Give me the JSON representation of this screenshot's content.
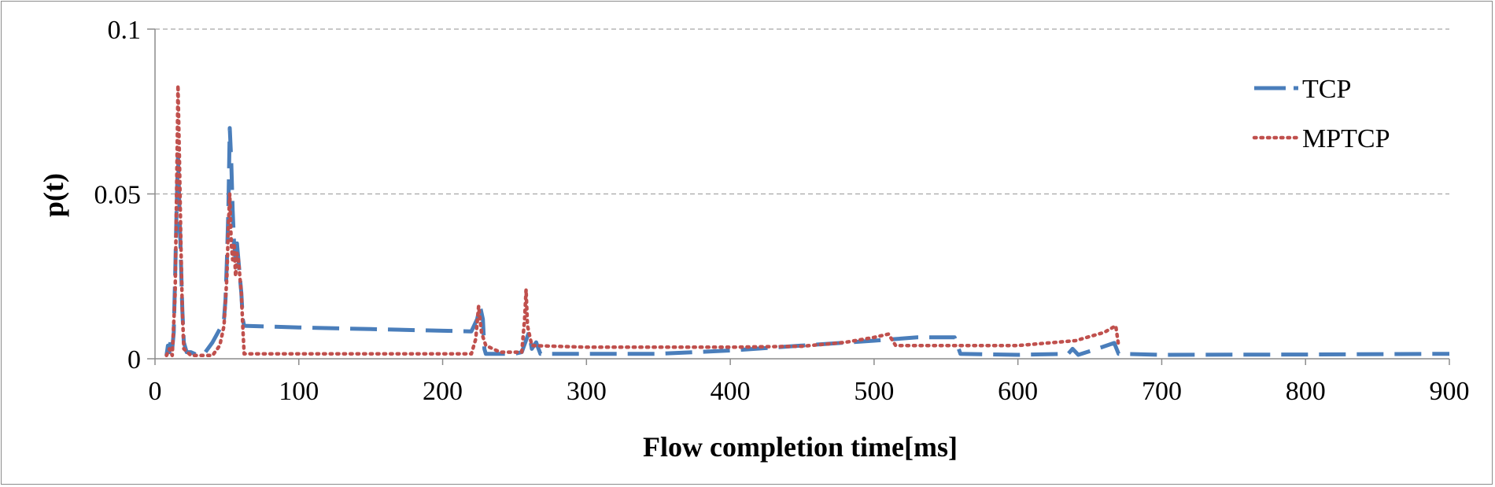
{
  "chart_data": {
    "type": "line",
    "title": "",
    "xlabel": "Flow completion time[ms]",
    "ylabel": "p(t)",
    "xlim": [
      0,
      900
    ],
    "ylim": [
      0,
      0.1
    ],
    "x_ticks": [
      "0",
      "100",
      "200",
      "300",
      "400",
      "500",
      "600",
      "700",
      "800",
      "900"
    ],
    "y_ticks": [
      "0",
      "0.05",
      "0.1"
    ],
    "grid": "horizontal dashed",
    "legend": "top-right",
    "series": [
      {
        "name": "TCP",
        "color": "#4a7ebb",
        "style": "dashed",
        "points": [
          [
            8,
            0.001
          ],
          [
            9,
            0.004
          ],
          [
            10,
            0.002
          ],
          [
            11,
            0.006
          ],
          [
            12,
            0.003
          ],
          [
            13,
            0.008
          ],
          [
            14,
            0.025
          ],
          [
            15,
            0.045
          ],
          [
            16,
            0.062
          ],
          [
            17,
            0.045
          ],
          [
            18,
            0.03
          ],
          [
            19,
            0.015
          ],
          [
            20,
            0.005
          ],
          [
            22,
            0.002
          ],
          [
            25,
            0.002
          ],
          [
            30,
            0.001
          ],
          [
            35,
            0.002
          ],
          [
            40,
            0.005
          ],
          [
            45,
            0.009
          ],
          [
            48,
            0.012
          ],
          [
            49,
            0.018
          ],
          [
            50,
            0.03
          ],
          [
            51,
            0.045
          ],
          [
            52,
            0.07
          ],
          [
            53,
            0.06
          ],
          [
            54,
            0.045
          ],
          [
            55,
            0.035
          ],
          [
            56,
            0.03
          ],
          [
            57,
            0.035
          ],
          [
            58,
            0.03
          ],
          [
            59,
            0.025
          ],
          [
            60,
            0.02
          ],
          [
            61,
            0.012
          ],
          [
            62,
            0.01
          ],
          [
            100,
            0.0095
          ],
          [
            150,
            0.009
          ],
          [
            200,
            0.0085
          ],
          [
            220,
            0.0083
          ],
          [
            224,
            0.012
          ],
          [
            226,
            0.016
          ],
          [
            228,
            0.012
          ],
          [
            229,
            0.003
          ],
          [
            230,
            0.0015
          ],
          [
            250,
            0.0015
          ],
          [
            255,
            0.002
          ],
          [
            260,
            0.008
          ],
          [
            262,
            0.003
          ],
          [
            265,
            0.005
          ],
          [
            268,
            0.0015
          ],
          [
            300,
            0.0015
          ],
          [
            350,
            0.0015
          ],
          [
            400,
            0.0025
          ],
          [
            450,
            0.004
          ],
          [
            500,
            0.0055
          ],
          [
            530,
            0.0065
          ],
          [
            556,
            0.0065
          ],
          [
            560,
            0.0015
          ],
          [
            600,
            0.0012
          ],
          [
            635,
            0.0015
          ],
          [
            638,
            0.003
          ],
          [
            642,
            0.0012
          ],
          [
            655,
            0.003
          ],
          [
            667,
            0.0048
          ],
          [
            670,
            0.0015
          ],
          [
            700,
            0.0012
          ],
          [
            800,
            0.0013
          ],
          [
            900,
            0.0015
          ]
        ]
      },
      {
        "name": "MPTCP",
        "color": "#c0504d",
        "style": "dotted",
        "points": [
          [
            8,
            0.001
          ],
          [
            10,
            0.003
          ],
          [
            12,
            0.001
          ],
          [
            14,
            0.02
          ],
          [
            15,
            0.05
          ],
          [
            16,
            0.083
          ],
          [
            17,
            0.06
          ],
          [
            18,
            0.035
          ],
          [
            19,
            0.015
          ],
          [
            20,
            0.003
          ],
          [
            25,
            0.001
          ],
          [
            40,
            0.001
          ],
          [
            45,
            0.004
          ],
          [
            48,
            0.01
          ],
          [
            50,
            0.025
          ],
          [
            51,
            0.04
          ],
          [
            52,
            0.05
          ],
          [
            53,
            0.035
          ],
          [
            54,
            0.03
          ],
          [
            55,
            0.035
          ],
          [
            56,
            0.025
          ],
          [
            57,
            0.032
          ],
          [
            58,
            0.03
          ],
          [
            59,
            0.025
          ],
          [
            60,
            0.02
          ],
          [
            61,
            0.01
          ],
          [
            62,
            0.0015
          ],
          [
            100,
            0.0015
          ],
          [
            200,
            0.0015
          ],
          [
            220,
            0.0015
          ],
          [
            223,
            0.006
          ],
          [
            225,
            0.016
          ],
          [
            227,
            0.008
          ],
          [
            230,
            0.004
          ],
          [
            240,
            0.002
          ],
          [
            255,
            0.002
          ],
          [
            257,
            0.012
          ],
          [
            258,
            0.021
          ],
          [
            259,
            0.01
          ],
          [
            262,
            0.004
          ],
          [
            300,
            0.0035
          ],
          [
            400,
            0.0035
          ],
          [
            450,
            0.0038
          ],
          [
            480,
            0.005
          ],
          [
            500,
            0.0065
          ],
          [
            510,
            0.0075
          ],
          [
            515,
            0.004
          ],
          [
            550,
            0.004
          ],
          [
            600,
            0.004
          ],
          [
            640,
            0.0055
          ],
          [
            660,
            0.008
          ],
          [
            668,
            0.01
          ],
          [
            670,
            0.004
          ]
        ]
      }
    ]
  }
}
